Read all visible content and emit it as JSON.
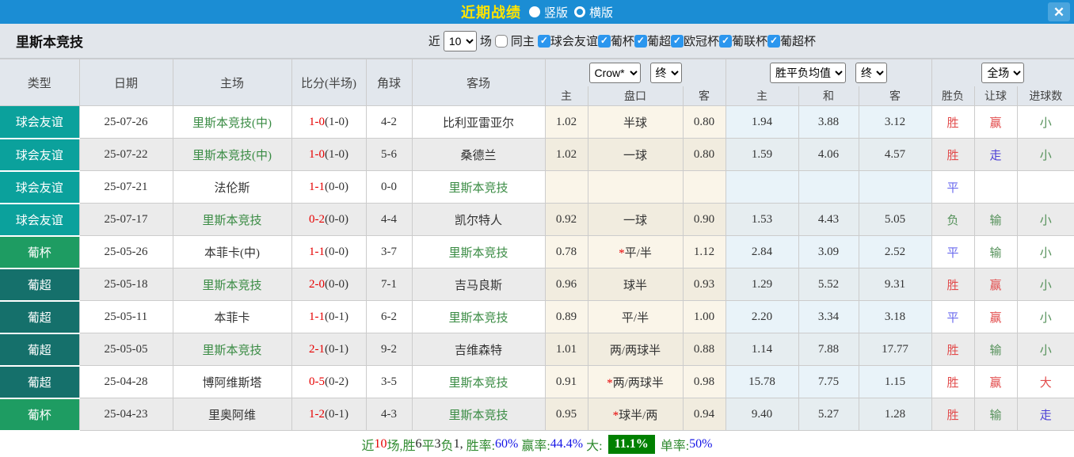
{
  "titlebar": {
    "title": "近期战绩",
    "close_icon": "✕",
    "view_options": [
      {
        "label": "竖版",
        "selected": true
      },
      {
        "label": "横版",
        "selected": false
      }
    ]
  },
  "filter": {
    "team": "里斯本竞技",
    "near_label": "近",
    "matches_value": "10",
    "matches_label": "场",
    "same_home": {
      "label": "同主",
      "checked": false
    },
    "competitions": [
      {
        "label": "球会友谊",
        "checked": true
      },
      {
        "label": "葡杯",
        "checked": true
      },
      {
        "label": "葡超",
        "checked": true
      },
      {
        "label": "欧冠杯",
        "checked": true
      },
      {
        "label": "葡联杯",
        "checked": true
      },
      {
        "label": "葡超杯",
        "checked": true
      }
    ]
  },
  "table": {
    "dropdowns": {
      "company": "Crow*",
      "company_state": "终",
      "average": "胜平负均值",
      "average_state": "终",
      "scope": "全场"
    },
    "columns": [
      "类型",
      "日期",
      "主场",
      "比分(半场)",
      "角球",
      "客场",
      "主",
      "盘口",
      "客",
      "主",
      "和",
      "客",
      "胜负",
      "让球",
      "进球数"
    ],
    "accent_colors": {
      "friendly": "#0ba19c",
      "cup": "#1e9c62",
      "league": "#15706b",
      "win_red": "#e24c4c",
      "draw_blue": "#6a6aee",
      "lose_green": "#55915a",
      "push_violet": "#4b3fd6"
    },
    "rows": [
      {
        "type": "球会友谊",
        "tc": "friendly",
        "date": "25-07-26",
        "home": "里斯本竞技(中)",
        "home_self": true,
        "score": "1-0",
        "half": "(1-0)",
        "corner": "4-2",
        "away": "比利亚雷亚尔",
        "away_self": false,
        "h": "1.02",
        "star": false,
        "line": "半球",
        "a": "0.80",
        "mh": "1.94",
        "md": "3.88",
        "ma": "3.12",
        "res": [
          "胜",
          "r"
        ],
        "hres": [
          "赢",
          "r"
        ],
        "gres": [
          "小",
          "g"
        ]
      },
      {
        "type": "球会友谊",
        "tc": "friendly",
        "date": "25-07-22",
        "home": "里斯本竞技(中)",
        "home_self": true,
        "score": "1-0",
        "half": "(1-0)",
        "corner": "5-6",
        "away": "桑德兰",
        "away_self": false,
        "h": "1.02",
        "star": false,
        "line": "一球",
        "a": "0.80",
        "mh": "1.59",
        "md": "4.06",
        "ma": "4.57",
        "res": [
          "胜",
          "r"
        ],
        "hres": [
          "走",
          "v"
        ],
        "gres": [
          "小",
          "g"
        ]
      },
      {
        "type": "球会友谊",
        "tc": "friendly",
        "date": "25-07-21",
        "home": "法伦斯",
        "home_self": false,
        "score": "1-1",
        "half": "(0-0)",
        "corner": "0-0",
        "away": "里斯本竞技",
        "away_self": true,
        "h": "",
        "star": false,
        "line": "",
        "a": "",
        "mh": "",
        "md": "",
        "ma": "",
        "res": [
          "平",
          "b"
        ],
        "hres": [
          "",
          ""
        ],
        "gres": [
          "",
          ""
        ]
      },
      {
        "type": "球会友谊",
        "tc": "friendly",
        "date": "25-07-17",
        "home": "里斯本竞技",
        "home_self": true,
        "score": "0-2",
        "half": "(0-0)",
        "corner": "4-4",
        "away": "凯尔特人",
        "away_self": false,
        "h": "0.92",
        "star": false,
        "line": "一球",
        "a": "0.90",
        "mh": "1.53",
        "md": "4.43",
        "ma": "5.05",
        "res": [
          "负",
          "g"
        ],
        "hres": [
          "输",
          "g"
        ],
        "gres": [
          "小",
          "g"
        ]
      },
      {
        "type": "葡杯",
        "tc": "cup",
        "date": "25-05-26",
        "home": "本菲卡(中)",
        "home_self": false,
        "score": "1-1",
        "half": "(0-0)",
        "corner": "3-7",
        "away": "里斯本竞技",
        "away_self": true,
        "h": "0.78",
        "star": true,
        "line": "平/半",
        "a": "1.12",
        "mh": "2.84",
        "md": "3.09",
        "ma": "2.52",
        "res": [
          "平",
          "b"
        ],
        "hres": [
          "输",
          "g"
        ],
        "gres": [
          "小",
          "g"
        ]
      },
      {
        "type": "葡超",
        "tc": "league",
        "date": "25-05-18",
        "home": "里斯本竞技",
        "home_self": true,
        "score": "2-0",
        "half": "(0-0)",
        "corner": "7-1",
        "away": "吉马良斯",
        "away_self": false,
        "h": "0.96",
        "star": false,
        "line": "球半",
        "a": "0.93",
        "mh": "1.29",
        "md": "5.52",
        "ma": "9.31",
        "res": [
          "胜",
          "r"
        ],
        "hres": [
          "赢",
          "r"
        ],
        "gres": [
          "小",
          "g"
        ]
      },
      {
        "type": "葡超",
        "tc": "league",
        "date": "25-05-11",
        "home": "本菲卡",
        "home_self": false,
        "score": "1-1",
        "half": "(0-1)",
        "corner": "6-2",
        "away": "里斯本竞技",
        "away_self": true,
        "h": "0.89",
        "star": false,
        "line": "平/半",
        "a": "1.00",
        "mh": "2.20",
        "md": "3.34",
        "ma": "3.18",
        "res": [
          "平",
          "b"
        ],
        "hres": [
          "赢",
          "r"
        ],
        "gres": [
          "小",
          "g"
        ]
      },
      {
        "type": "葡超",
        "tc": "league",
        "date": "25-05-05",
        "home": "里斯本竞技",
        "home_self": true,
        "score": "2-1",
        "half": "(0-1)",
        "corner": "9-2",
        "away": "吉维森特",
        "away_self": false,
        "h": "1.01",
        "star": false,
        "line": "两/两球半",
        "a": "0.88",
        "mh": "1.14",
        "md": "7.88",
        "ma": "17.77",
        "res": [
          "胜",
          "r"
        ],
        "hres": [
          "输",
          "g"
        ],
        "gres": [
          "小",
          "g"
        ]
      },
      {
        "type": "葡超",
        "tc": "league",
        "date": "25-04-28",
        "home": "博阿维斯塔",
        "home_self": false,
        "score": "0-5",
        "half": "(0-2)",
        "corner": "3-5",
        "away": "里斯本竞技",
        "away_self": true,
        "h": "0.91",
        "star": true,
        "line": "两/两球半",
        "a": "0.98",
        "mh": "15.78",
        "md": "7.75",
        "ma": "1.15",
        "res": [
          "胜",
          "r"
        ],
        "hres": [
          "赢",
          "r"
        ],
        "gres": [
          "大",
          "r"
        ]
      },
      {
        "type": "葡杯",
        "tc": "cup",
        "date": "25-04-23",
        "home": "里奥阿维",
        "home_self": false,
        "score": "1-2",
        "half": "(0-1)",
        "corner": "4-3",
        "away": "里斯本竞技",
        "away_self": true,
        "h": "0.95",
        "star": true,
        "line": "球半/两",
        "a": "0.94",
        "mh": "9.40",
        "md": "5.27",
        "ma": "1.28",
        "res": [
          "胜",
          "r"
        ],
        "hres": [
          "输",
          "g"
        ],
        "gres": [
          "走",
          "v"
        ]
      }
    ]
  },
  "footer": {
    "segments": [
      {
        "t": "近",
        "c": "g"
      },
      {
        "t": "10",
        "c": "r"
      },
      {
        "t": "场,胜",
        "c": "g"
      },
      {
        "t": "6",
        "c": "k"
      },
      {
        "t": "平",
        "c": "g"
      },
      {
        "t": "3",
        "c": "k"
      },
      {
        "t": "负",
        "c": "g"
      },
      {
        "t": "1, ",
        "c": "k"
      },
      {
        "t": "胜率:",
        "c": "g"
      },
      {
        "t": "60%",
        "c": "b"
      },
      {
        "t": " 赢率:",
        "c": "g"
      },
      {
        "t": "44.4%",
        "c": "b"
      },
      {
        "t": " 大: ",
        "c": "g"
      },
      {
        "t": "11.1%",
        "c": "box"
      },
      {
        "t": " 单率:",
        "c": "g"
      },
      {
        "t": "50%",
        "c": "b"
      }
    ]
  }
}
